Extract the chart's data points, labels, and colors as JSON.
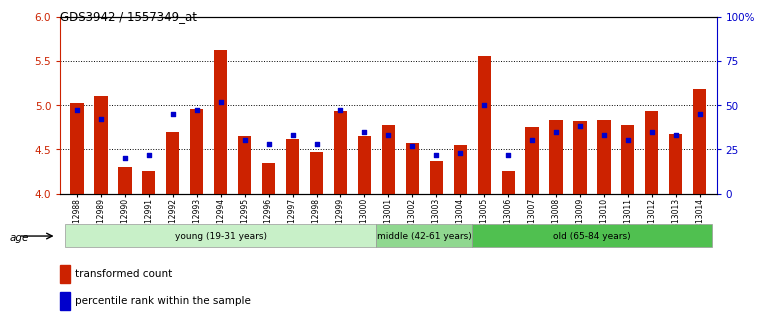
{
  "title": "GDS3942 / 1557349_at",
  "samples": [
    "GSM812988",
    "GSM812989",
    "GSM812990",
    "GSM812991",
    "GSM812992",
    "GSM812993",
    "GSM812994",
    "GSM812995",
    "GSM812996",
    "GSM812997",
    "GSM812998",
    "GSM812999",
    "GSM813000",
    "GSM813001",
    "GSM813002",
    "GSM813003",
    "GSM813004",
    "GSM813005",
    "GSM813006",
    "GSM813007",
    "GSM813008",
    "GSM813009",
    "GSM813010",
    "GSM813011",
    "GSM813012",
    "GSM813013",
    "GSM813014"
  ],
  "red_values": [
    5.02,
    5.1,
    4.3,
    4.25,
    4.7,
    4.95,
    5.62,
    4.65,
    4.35,
    4.62,
    4.47,
    4.93,
    4.65,
    4.77,
    4.57,
    4.37,
    4.55,
    5.55,
    4.25,
    4.75,
    4.83,
    4.82,
    4.83,
    4.77,
    4.93,
    4.67,
    5.18
  ],
  "blue_values_pct": [
    47,
    42,
    20,
    22,
    45,
    47,
    52,
    30,
    28,
    33,
    28,
    47,
    35,
    33,
    27,
    22,
    23,
    50,
    22,
    30,
    35,
    38,
    33,
    30,
    35,
    33,
    45
  ],
  "groups": [
    {
      "label": "young (19-31 years)",
      "start": 0,
      "end": 13,
      "color": "#c8f0c8"
    },
    {
      "label": "middle (42-61 years)",
      "start": 13,
      "end": 17,
      "color": "#90d890"
    },
    {
      "label": "old (65-84 years)",
      "start": 17,
      "end": 27,
      "color": "#50c050"
    }
  ],
  "ylim_left": [
    4.0,
    6.0
  ],
  "ylim_right": [
    0,
    100
  ],
  "yticks_left": [
    4.0,
    4.5,
    5.0,
    5.5,
    6.0
  ],
  "yticks_right": [
    0,
    25,
    50,
    75,
    100
  ],
  "ylabel_right_labels": [
    "0",
    "25",
    "50",
    "75",
    "100%"
  ],
  "bar_color": "#cc2200",
  "dot_color": "#0000cc",
  "background_color": "#ffffff",
  "plot_bg_color": "#ffffff",
  "left_tick_color": "#cc2200",
  "right_tick_color": "#0000cc"
}
